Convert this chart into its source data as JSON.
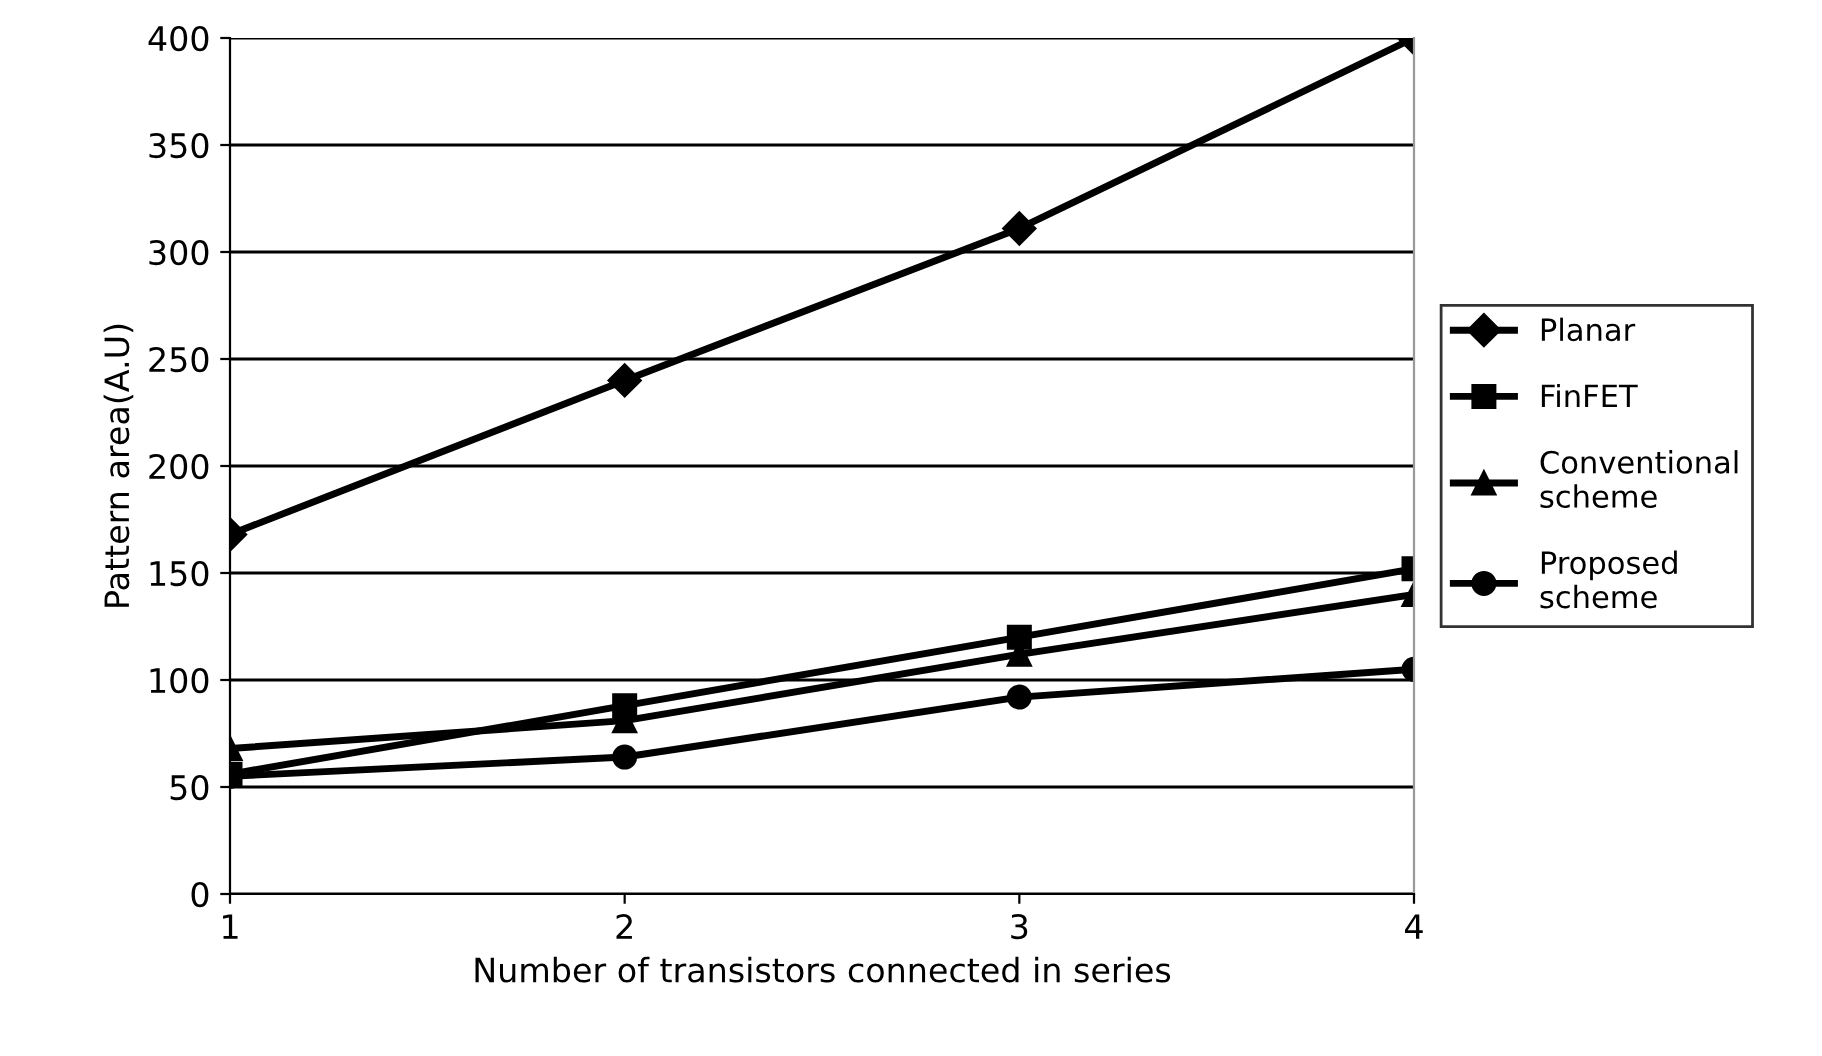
{
  "chart_data": {
    "type": "line",
    "xlabel": "Number of transistors connected in series",
    "ylabel": "Pattern area(A.U)",
    "x": [
      1,
      2,
      3,
      4
    ],
    "xlim": [
      1,
      4
    ],
    "xticks": [
      1,
      2,
      3,
      4
    ],
    "ylim": [
      0,
      400
    ],
    "yticks": [
      0,
      50,
      100,
      150,
      200,
      250,
      300,
      350,
      400
    ],
    "grid": "y",
    "legend": "right",
    "series": [
      {
        "name": "Planar",
        "color": "#000000",
        "marker": "diamond",
        "values": [
          168,
          240,
          311,
          400
        ]
      },
      {
        "name": "FinFET",
        "color": "#000000",
        "marker": "square",
        "values": [
          56,
          88,
          120,
          152
        ]
      },
      {
        "name": "Conventional\nscheme",
        "color": "#000000",
        "marker": "triangle",
        "values": [
          68,
          81,
          112,
          140
        ]
      },
      {
        "name": "Proposed\nscheme",
        "color": "#000000",
        "marker": "circle",
        "values": [
          55,
          64,
          92,
          105
        ]
      }
    ]
  }
}
